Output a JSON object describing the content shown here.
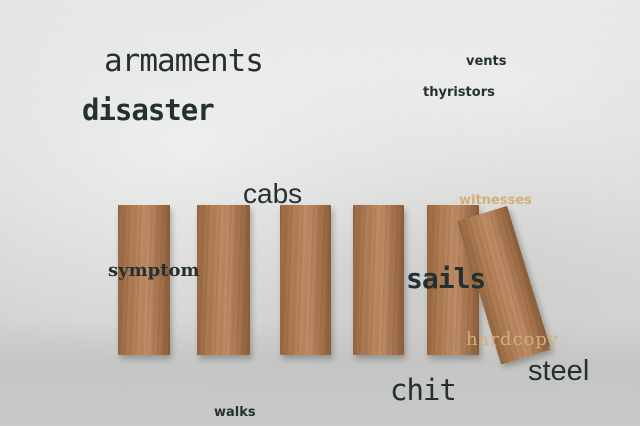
{
  "words": {
    "armaments": "armaments",
    "disaster": "disaster",
    "vents": "vents",
    "thyristors": "thyristors",
    "cabs": "cabs",
    "witnesses": "witnesses",
    "symptom": "symptom",
    "sails": "sails",
    "hardcopy": "hardcopy",
    "steel": "steel",
    "chit": "chit",
    "walks": "walks"
  },
  "colors": {
    "text_dark": "#253033",
    "text_light": "#d2b07a",
    "wood": "#b5835a",
    "background": "#d9d9d7"
  }
}
